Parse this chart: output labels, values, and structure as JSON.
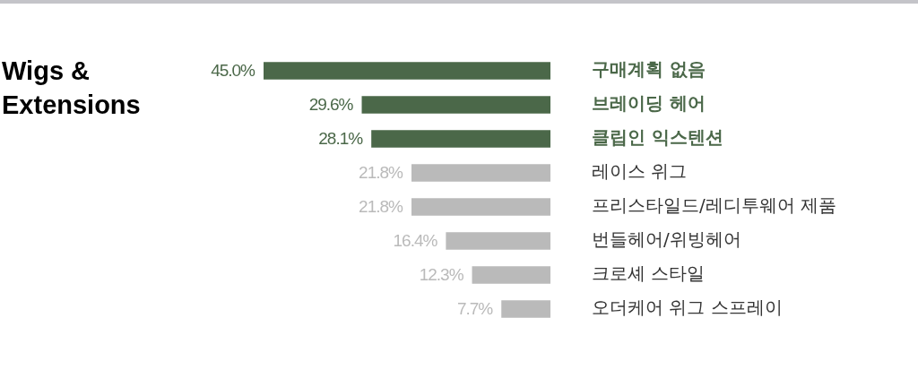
{
  "chart_data": {
    "type": "bar",
    "orientation": "horizontal",
    "title": "Wigs & Extensions",
    "categories": [
      "구매계획 없음",
      "브레이딩 헤어",
      "클립인 익스텐션",
      "레이스 위그",
      "프리스타일드/레디투웨어 제품",
      "번들헤어/위빙헤어",
      "크로셰 스타일",
      "오더케어 위그 스프레이"
    ],
    "values": [
      45.0,
      29.6,
      28.1,
      21.8,
      21.8,
      16.4,
      12.3,
      7.7
    ],
    "colors": [
      "#4b6849",
      "#4b6849",
      "#4b6849",
      "#bababa",
      "#bababa",
      "#bababa",
      "#bababa",
      "#bababa"
    ],
    "value_labels": [
      "45.0%",
      "29.6%",
      "28.1%",
      "21.8%",
      "21.8%",
      "16.4%",
      "12.3%",
      "7.7%"
    ],
    "xlim": [
      45,
      0
    ],
    "tick_labels": "y",
    "grid": false
  }
}
